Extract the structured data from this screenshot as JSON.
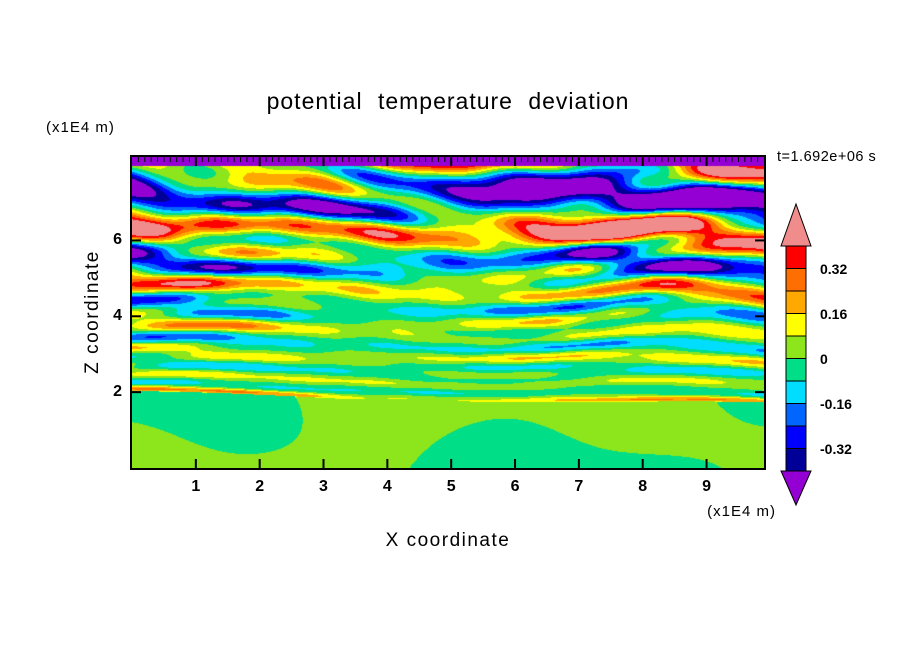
{
  "chart_data": {
    "type": "heatmap",
    "title": "potential temperature deviation",
    "xlabel": "X coordinate",
    "zlabel": "Z coordinate",
    "x_units": "(x1E4 m)",
    "z_units": "(x1E4 m)",
    "time_label": "t=1.692e+06 s",
    "x_range": [
      0,
      9.9
    ],
    "z_range": [
      0,
      8.2
    ],
    "x_ticks": [
      1,
      2,
      3,
      4,
      5,
      6,
      7,
      8,
      9
    ],
    "x_minor_tick_step": 0.1,
    "z_ticks": [
      2,
      4,
      6
    ],
    "grid": false,
    "legend_position": "right-colorbar",
    "colorbar": {
      "labels": [
        "0.32",
        "0.16",
        "0",
        "-0.16",
        "-0.32"
      ],
      "levels": [
        -0.4,
        -0.32,
        -0.24,
        -0.16,
        -0.08,
        0,
        0.08,
        0.16,
        0.24,
        0.32,
        0.4
      ],
      "colors": [
        "#000099",
        "#0000FF",
        "#0066FF",
        "#00DDFF",
        "#00DE87",
        "#8DE51C",
        "#FFFF00",
        "#FFA800",
        "#FF6E00",
        "#FF0000"
      ],
      "under_color": "#9400D3",
      "over_color": "#F08C8C"
    },
    "field": {
      "description": "Near-zero deviations (two-tone green, |v|<0.08) in a smooth blobby layer below z~2x10^4 m with a thin intense warm line at its top; horizontally banded gravity-wave deviations above, alternating sign, amplitude growing with height and saturating beyond +/-0.4 (salmon/purple bands) near domain top; solid negative (purple) strip along the very top edge.",
      "boundary_z": 1.95,
      "boundary_slope": -0.03,
      "top_band_z": 7.95,
      "top_band_value": -0.55,
      "amp_base": 0.1,
      "amp_growth": 0.055,
      "amp_exponent": 1.5,
      "amp_cap": 0.62,
      "wavelength_base": 0.42,
      "wavelength_growth": 0.1
    }
  }
}
